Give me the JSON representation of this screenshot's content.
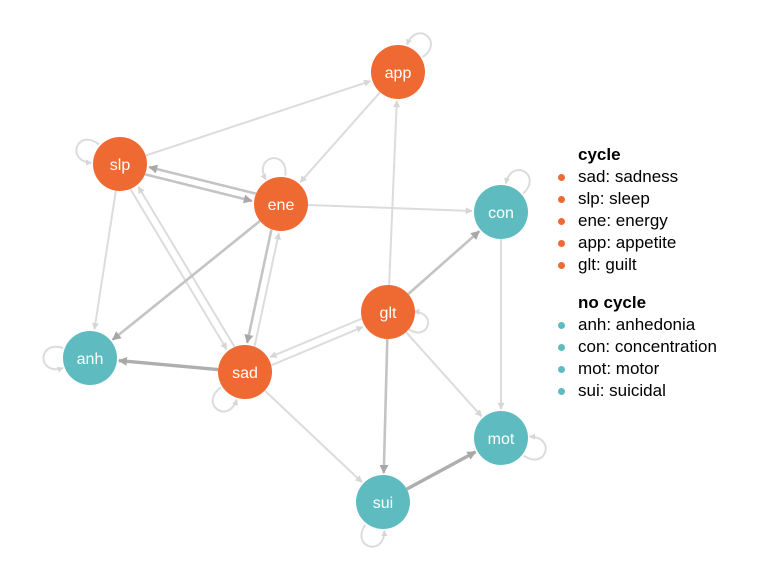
{
  "colors": {
    "cycle": "#ee6a32",
    "no_cycle": "#5ebcc1",
    "edge_light": "#dcdcdc",
    "edge_dark": "#b0b0b0"
  },
  "nodes": [
    {
      "id": "app",
      "group": "cycle"
    },
    {
      "id": "slp",
      "group": "cycle"
    },
    {
      "id": "ene",
      "group": "cycle"
    },
    {
      "id": "glt",
      "group": "cycle"
    },
    {
      "id": "sad",
      "group": "cycle"
    },
    {
      "id": "anh",
      "group": "no_cycle"
    },
    {
      "id": "con",
      "group": "no_cycle"
    },
    {
      "id": "mot",
      "group": "no_cycle"
    },
    {
      "id": "sui",
      "group": "no_cycle"
    }
  ],
  "edges": [
    {
      "from": "slp",
      "to": "app",
      "weight": "light"
    },
    {
      "from": "app",
      "to": "ene",
      "weight": "light"
    },
    {
      "from": "slp",
      "to": "ene",
      "weight": "dark"
    },
    {
      "from": "ene",
      "to": "slp",
      "weight": "dark"
    },
    {
      "from": "ene",
      "to": "con",
      "weight": "light"
    },
    {
      "from": "slp",
      "to": "anh",
      "weight": "light"
    },
    {
      "from": "slp",
      "to": "sad",
      "weight": "light"
    },
    {
      "from": "sad",
      "to": "slp",
      "weight": "light"
    },
    {
      "from": "ene",
      "to": "anh",
      "weight": "dark"
    },
    {
      "from": "ene",
      "to": "sad",
      "weight": "dark"
    },
    {
      "from": "sad",
      "to": "ene",
      "weight": "light"
    },
    {
      "from": "sad",
      "to": "anh",
      "weight": "darker"
    },
    {
      "from": "glt",
      "to": "app",
      "weight": "light"
    },
    {
      "from": "glt",
      "to": "con",
      "weight": "dark"
    },
    {
      "from": "glt",
      "to": "sad",
      "weight": "light"
    },
    {
      "from": "sad",
      "to": "glt",
      "weight": "light"
    },
    {
      "from": "glt",
      "to": "sui",
      "weight": "dark"
    },
    {
      "from": "glt",
      "to": "mot",
      "weight": "light"
    },
    {
      "from": "sad",
      "to": "sui",
      "weight": "light"
    },
    {
      "from": "con",
      "to": "mot",
      "weight": "light"
    },
    {
      "from": "sui",
      "to": "mot",
      "weight": "darker"
    }
  ],
  "self_loops": [
    "app",
    "slp",
    "ene",
    "con",
    "anh",
    "glt",
    "sad",
    "mot",
    "sui"
  ],
  "legend": {
    "groups": [
      {
        "title": "cycle",
        "color_key": "cycle",
        "items": [
          "sad: sadness",
          "slp: sleep",
          "ene: energy",
          "app: appetite",
          "glt: guilt"
        ]
      },
      {
        "title": "no cycle",
        "color_key": "no_cycle",
        "items": [
          "anh: anhedonia",
          "con: concentration",
          "mot: motor",
          "sui: suicidal"
        ]
      }
    ]
  }
}
